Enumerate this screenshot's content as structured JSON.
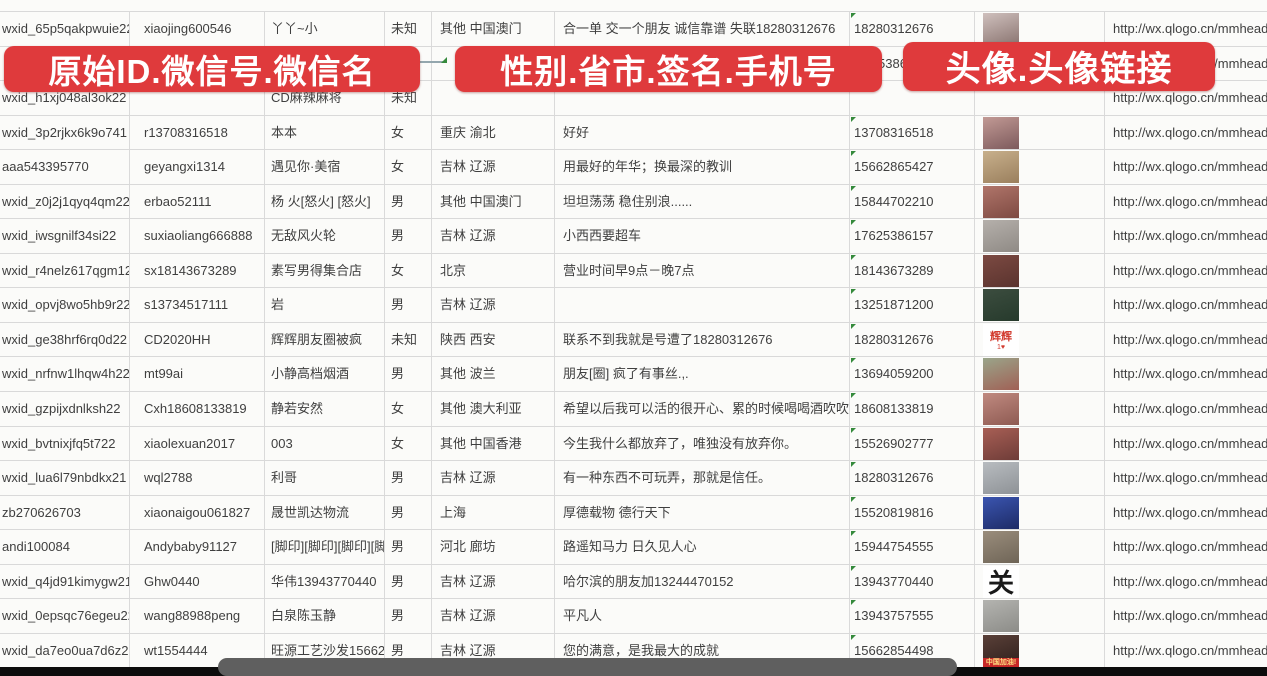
{
  "overlays": {
    "banner_color": "#df3a3c",
    "banners": [
      {
        "label": "原始ID.微信号.微信名"
      },
      {
        "label": "性别.省市.签名.手机号"
      },
      {
        "label": "头像.头像链接"
      }
    ]
  },
  "url_text": "http://wx.qlogo.cn/mmhead",
  "grid_line_color": "#d9d9d9",
  "error_indicator_color": "#358a3c",
  "rows": [
    {
      "wxid": "wxid_65p5qakpwuie22",
      "wechat_id": "xiaojing600546",
      "wechat_name": "丫丫~小",
      "gender": "未知",
      "region": "其他 中国澳门",
      "signature": "合一单 交一个朋友 诚信靠谱 失联18280312676",
      "phone": "18280312676",
      "phone_fragment": false,
      "avatar": {
        "colors": [
          "#cfc0bd",
          "#8a7470"
        ]
      },
      "url": true
    },
    {
      "wxid": "",
      "wechat_id": "",
      "wechat_name": "",
      "gender": "",
      "region": "",
      "signature": "",
      "phone": "5386",
      "phone_fragment": true,
      "avatar": null,
      "url": true
    },
    {
      "wxid": "wxid_h1xj048al3ok22",
      "wechat_id": "",
      "wechat_name": "CD麻辣麻将",
      "gender": "未知",
      "region": "",
      "signature": "",
      "phone": "",
      "phone_fragment": false,
      "avatar": null,
      "url": true
    },
    {
      "wxid": "wxid_3p2rjkx6k9o741",
      "wechat_id": "r13708316518",
      "wechat_name": "本本",
      "gender": "女",
      "region": "重庆 渝北",
      "signature": "好好",
      "phone": "13708316518",
      "phone_fragment": false,
      "avatar": {
        "colors": [
          "#c29a95",
          "#7d5a5c"
        ]
      },
      "url": true
    },
    {
      "wxid": "aaa543395770",
      "wechat_id": "geyangxi1314",
      "wechat_name": "遇见你·美宿",
      "gender": "女",
      "region": "吉林 辽源",
      "signature": "用最好的年华；换最深的教训",
      "phone": "15662865427",
      "phone_fragment": false,
      "avatar": {
        "colors": [
          "#c8b08c",
          "#9a7f5d"
        ]
      },
      "url": true
    },
    {
      "wxid": "wxid_z0j2j1qyq4qm22",
      "wechat_id": "erbao52111",
      "wechat_name": "杨 火[怒火] [怒火]",
      "gender": "男",
      "region": "其他 中国澳门",
      "signature": "坦坦荡荡 稳住别浪......",
      "phone": "15844702210",
      "phone_fragment": false,
      "avatar": {
        "colors": [
          "#b0756a",
          "#7e4a42"
        ]
      },
      "url": true
    },
    {
      "wxid": "wxid_iwsgnilf34si22",
      "wechat_id": "suxiaoliang666888",
      "wechat_name": "无敌风火轮",
      "gender": "男",
      "region": "吉林 辽源",
      "signature": "小西西要超车",
      "phone": "17625386157",
      "phone_fragment": false,
      "avatar": {
        "colors": [
          "#b5b0ab",
          "#8f8a85"
        ]
      },
      "url": true
    },
    {
      "wxid": "wxid_r4nelz617qgm12",
      "wechat_id": "sx18143673289",
      "wechat_name": "素写男得集合店",
      "gender": "女",
      "region": "北京",
      "signature": "营业时间早9点－晚7点",
      "phone": "18143673289",
      "phone_fragment": false,
      "avatar": {
        "colors": [
          "#7c4a42",
          "#5a332e"
        ]
      },
      "url": true
    },
    {
      "wxid": "wxid_opvj8wo5hb9r22",
      "wechat_id": "s13734517111",
      "wechat_name": "岩",
      "gender": "男",
      "region": "吉林 辽源",
      "signature": "",
      "phone": "13251871200",
      "phone_fragment": false,
      "avatar": {
        "colors": [
          "#3c4d3f",
          "#263a2c"
        ]
      },
      "url": true
    },
    {
      "wxid": "wxid_ge38hrf6rq0d22",
      "wechat_id": "CD2020HH",
      "wechat_name": "辉辉朋友圈被疯",
      "gender": "未知",
      "region": "陕西 西安",
      "signature": "联系不到我就是号遭了18280312676",
      "phone": "18280312676",
      "phone_fragment": false,
      "avatar": {
        "bg": "#ffffff",
        "text": "辉辉",
        "text_color": "#d23b2f",
        "sub_text": "1♥",
        "sub_color": "#d23b2f"
      },
      "url": true
    },
    {
      "wxid": "wxid_nrfnw1lhqw4h22",
      "wechat_id": "mt99ai",
      "wechat_name": "小静高档烟酒",
      "gender": "男",
      "region": "其他 波兰",
      "signature": "朋友[圈] 疯了有事丝.,.",
      "phone": "13694059200",
      "phone_fragment": false,
      "avatar": {
        "colors": [
          "#9aa58a",
          "#a06055"
        ]
      },
      "url": true
    },
    {
      "wxid": "wxid_gzpijxdnlksh22",
      "wechat_id": "Cxh18608133819",
      "wechat_name": "静若安然",
      "gender": "女",
      "region": "其他 澳大利亚",
      "signature": "希望以后我可以活的很开心、累的时候喝喝酒吹吹[",
      "phone": "18608133819",
      "phone_fragment": false,
      "avatar": {
        "colors": [
          "#c08a80",
          "#8e5a52"
        ]
      },
      "url": true
    },
    {
      "wxid": "wxid_bvtnixjfq5t722",
      "wechat_id": "xiaolexuan2017",
      "wechat_name": "003",
      "gender": "女",
      "region": "其他 中国香港",
      "signature": "今生我什么都放弃了，唯独没有放弃你。",
      "phone": "15526902777",
      "phone_fragment": false,
      "avatar": {
        "colors": [
          "#a85f55",
          "#6e3c38"
        ]
      },
      "url": true
    },
    {
      "wxid": "wxid_lua6l79nbdkx21",
      "wechat_id": "wql2788",
      "wechat_name": "利哥",
      "gender": "男",
      "region": "吉林 辽源",
      "signature": "有一种东西不可玩弄，那就是信任。",
      "phone": "18280312676",
      "phone_fragment": false,
      "avatar": {
        "colors": [
          "#b8bcc0",
          "#8e9296"
        ]
      },
      "url": true
    },
    {
      "wxid": "zb270626703",
      "wechat_id": "xiaonaigou061827",
      "wechat_name": "晟世凯达物流",
      "gender": "男",
      "region": "上海",
      "signature": "厚德载物 德行天下",
      "phone": "15520819816",
      "phone_fragment": false,
      "avatar": {
        "colors": [
          "#3b55b0",
          "#1d2b66"
        ]
      },
      "url": true
    },
    {
      "wxid": "andi100084",
      "wechat_id": "Andybaby91127",
      "wechat_name": "[脚印][脚印][脚印][脚印]",
      "gender": "男",
      "region": "河北 廊坊",
      "signature": "路遥知马力 日久见人心",
      "phone": "15944754555",
      "phone_fragment": false,
      "avatar": {
        "colors": [
          "#9a8d7c",
          "#6f6557"
        ]
      },
      "url": true
    },
    {
      "wxid": "wxid_q4jd91kimygw21",
      "wechat_id": "Ghw0440",
      "wechat_name": "华伟13943770440",
      "gender": "男",
      "region": "吉林 辽源",
      "signature": "哈尔滨的朋友加13244470152",
      "phone": "13943770440",
      "phone_fragment": false,
      "avatar": {
        "bg": "#ffffff",
        "text": "关",
        "text_color": "#1a1a1a",
        "text_size": 26
      },
      "url": true
    },
    {
      "wxid": "wxid_0epsqc76egeu22",
      "wechat_id": "wang88988peng",
      "wechat_name": "白泉陈玉静",
      "gender": "男",
      "region": "吉林 辽源",
      "signature": "平凡人",
      "phone": "13943757555",
      "phone_fragment": false,
      "avatar": {
        "colors": [
          "#b4b4b0",
          "#8c8c88"
        ]
      },
      "url": true
    },
    {
      "wxid": "wxid_da7eo0ua7d6z22",
      "wechat_id": "wt1554444",
      "wechat_name": "旺源工艺沙发15662854",
      "gender": "男",
      "region": "吉林 辽源",
      "signature": "您的满意，是我最大的成就",
      "phone": "15662854498",
      "phone_fragment": false,
      "avatar": {
        "colors": [
          "#5a4038",
          "#2e1f1c"
        ],
        "strip": "#c62828",
        "strip_text": "中国加油!"
      },
      "url": true
    },
    {
      "wxid": "",
      "wechat_id": "",
      "wechat_name": "",
      "gender": "",
      "region": "",
      "signature": "",
      "phone": "",
      "phone_fragment": false,
      "avatar": {
        "colors": [
          "#7a9ac0",
          "#4a6a96"
        ]
      },
      "url": false
    }
  ]
}
